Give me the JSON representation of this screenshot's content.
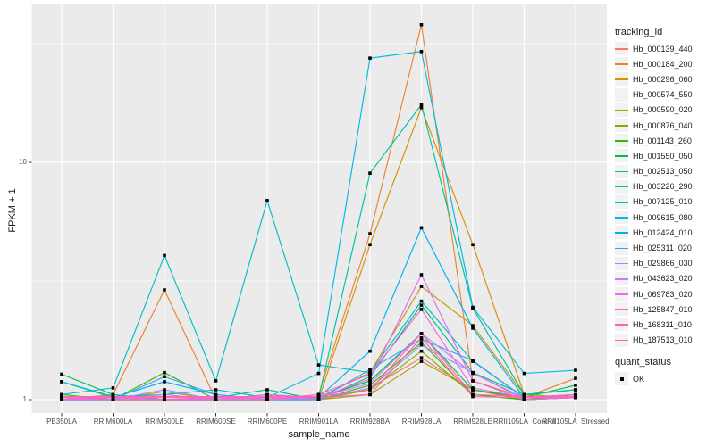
{
  "figure": {
    "y_axis_title": "FPKM + 1",
    "x_axis_title": "sample_name",
    "legend_tracking_title": "tracking_id",
    "legend_quant_title": "quant_status",
    "quant_status_label": "OK",
    "colors": {
      "panel_bg": "#EBEBEB",
      "grid": "#FFFFFF",
      "tick_text": "#4D4D4D",
      "axis_tick": "#333333",
      "point": "#000000",
      "legend_key_bg": "#F2F2F2"
    }
  },
  "chart_data": {
    "type": "line",
    "x_type": "categorical",
    "y_scale": "log10",
    "ylim": [
      0.96,
      46
    ],
    "grid": "on",
    "legend_position": "right",
    "point_shape": "filled-square",
    "y_tick_labels": [
      "10",
      "1"
    ],
    "y_tick_values": [
      10,
      1
    ],
    "y_minor_values": [
      31.62,
      3.162
    ],
    "title": "",
    "xlabel": "sample_name",
    "ylabel": "FPKM + 1",
    "categories": [
      "PB350LA",
      "RRIM600LA",
      "RRIM600LE",
      "RRIM600SE",
      "RRIM600PE",
      "RRIM901LA",
      "RRIM928BA",
      "RRIM928LA",
      "RRIM928LE",
      "RRII105LA_Control",
      "RRII105LA_Stressed"
    ],
    "series": [
      {
        "name": "Hb_000139_440",
        "color": "#F8766D",
        "values": [
          1,
          1,
          1,
          1,
          1,
          1,
          1.12,
          1.5,
          1.1,
          1,
          1.05
        ]
      },
      {
        "name": "Hb_000184_200",
        "color": "#EA8331",
        "values": [
          1,
          1.05,
          2.9,
          1,
          1,
          1.05,
          5.0,
          38,
          1.2,
          1.02,
          1.23
        ]
      },
      {
        "name": "Hb_000296_060",
        "color": "#D89000",
        "values": [
          1,
          1,
          1,
          1,
          1,
          1,
          4.5,
          17,
          4.5,
          1.05,
          1.1
        ]
      },
      {
        "name": "Hb_000574_550",
        "color": "#C09B00",
        "values": [
          1,
          1,
          1.08,
          1,
          1,
          1.02,
          1.3,
          3.0,
          2.05,
          1.05,
          1.02
        ]
      },
      {
        "name": "Hb_000590_020",
        "color": "#A3A500",
        "values": [
          1,
          1,
          1,
          1,
          1,
          1,
          1.05,
          1.45,
          1.1,
          1,
          1.02
        ]
      },
      {
        "name": "Hb_000876_040",
        "color": "#7CAE00",
        "values": [
          1,
          1.02,
          1,
          1,
          1.02,
          1,
          1.1,
          1.6,
          1.05,
          1,
          1.02
        ]
      },
      {
        "name": "Hb_001143_260",
        "color": "#39B600",
        "values": [
          1.05,
          1,
          1.3,
          1,
          1.05,
          1,
          1.15,
          1.74,
          1.05,
          1,
          1.05
        ]
      },
      {
        "name": "Hb_001550_050",
        "color": "#00BB4E",
        "values": [
          1.28,
          1.05,
          1,
          1,
          1,
          1.02,
          1.2,
          1.9,
          1.1,
          1.02,
          1.15
        ]
      },
      {
        "name": "Hb_002513_050",
        "color": "#00BF7D",
        "values": [
          1.19,
          1.02,
          1,
          1.02,
          1.1,
          1,
          1.25,
          2.5,
          1.3,
          1.05,
          1.1
        ]
      },
      {
        "name": "Hb_003226_290",
        "color": "#00C1A3",
        "values": [
          1,
          1,
          1,
          1,
          1.05,
          1.02,
          9.0,
          17.5,
          2.43,
          1.05,
          1.1
        ]
      },
      {
        "name": "Hb_007125_010",
        "color": "#00BFC4",
        "values": [
          1.05,
          1.12,
          4.05,
          1.2,
          6.9,
          1.4,
          1.3,
          2.6,
          1.45,
          1.02,
          1.05
        ]
      },
      {
        "name": "Hb_009615_080",
        "color": "#00BAE0",
        "values": [
          1.19,
          1.03,
          1.05,
          1.1,
          1.02,
          1.29,
          27.5,
          29.3,
          2.45,
          1.29,
          1.33
        ]
      },
      {
        "name": "Hb_012424_010",
        "color": "#00B0F6",
        "values": [
          1,
          1.02,
          1.19,
          1.05,
          1,
          1.02,
          1.6,
          5.3,
          2.0,
          1.02,
          1.05
        ]
      },
      {
        "name": "Hb_025311_020",
        "color": "#35A2FF",
        "values": [
          1.02,
          1,
          1.25,
          1.05,
          1,
          1,
          1.34,
          1.8,
          1.46,
          1.02,
          1.05
        ]
      },
      {
        "name": "Hb_029866_030",
        "color": "#9590FF",
        "values": [
          1,
          1,
          1.1,
          1,
          1.02,
          1,
          1.12,
          1.7,
          1.3,
          1,
          1.02
        ]
      },
      {
        "name": "Hb_043623_020",
        "color": "#C77CFF",
        "values": [
          1.02,
          1,
          1.05,
          1,
          1,
          1.02,
          1.17,
          1.9,
          1.29,
          1.02,
          1.05
        ]
      },
      {
        "name": "Hb_069783_020",
        "color": "#E76BF3",
        "values": [
          1,
          1.02,
          1,
          1,
          1.05,
          1.02,
          1.22,
          3.36,
          1.2,
          1,
          1.02
        ]
      },
      {
        "name": "Hb_125847_010",
        "color": "#FA62DB",
        "values": [
          1.02,
          1,
          1,
          1.02,
          1,
          1.05,
          1.28,
          2.4,
          1.12,
          1.02,
          1.05
        ]
      },
      {
        "name": "Hb_168311_010",
        "color": "#FF62BC",
        "values": [
          1.03,
          1.03,
          1.03,
          1.03,
          1.03,
          1.03,
          1.1,
          1.9,
          1.05,
          1.03,
          1.03
        ]
      },
      {
        "name": "Hb_187513_010",
        "color": "#FF6A98",
        "values": [
          1.02,
          1.02,
          1.02,
          1.02,
          1.02,
          1.02,
          1.05,
          1.82,
          1.03,
          1.02,
          1.02
        ]
      }
    ]
  }
}
